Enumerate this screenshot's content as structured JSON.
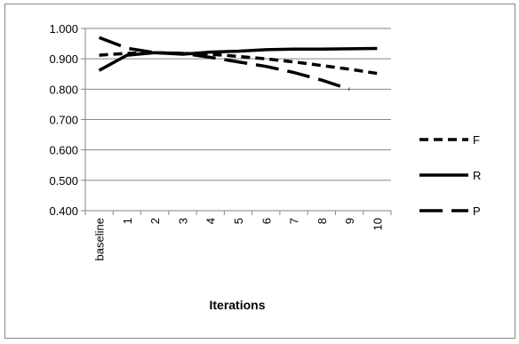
{
  "chart_data": {
    "type": "line",
    "title": "",
    "xlabel": "Iterations",
    "ylabel": "",
    "categories": [
      "baseline",
      "1",
      "2",
      "3",
      "4",
      "5",
      "6",
      "7",
      "8",
      "9",
      "10"
    ],
    "ylim": [
      0.4,
      1.0
    ],
    "yticks": [
      "0.400",
      "0.500",
      "0.600",
      "0.700",
      "0.800",
      "0.900",
      "1.000"
    ],
    "grid": true,
    "legend_position": "right",
    "series": [
      {
        "name": "F",
        "dash": "dashed",
        "values": [
          0.912,
          0.918,
          0.92,
          0.918,
          0.915,
          0.908,
          0.9,
          0.89,
          0.878,
          0.866,
          0.852
        ]
      },
      {
        "name": "R",
        "dash": "solid",
        "values": [
          0.862,
          0.912,
          0.92,
          0.915,
          0.922,
          0.925,
          0.93,
          0.932,
          0.932,
          0.933,
          0.934
        ]
      },
      {
        "name": "P",
        "dash": "longdash",
        "values": [
          0.97,
          0.935,
          0.92,
          0.918,
          0.905,
          0.89,
          0.875,
          0.855,
          0.83,
          0.8,
          null
        ]
      }
    ]
  }
}
